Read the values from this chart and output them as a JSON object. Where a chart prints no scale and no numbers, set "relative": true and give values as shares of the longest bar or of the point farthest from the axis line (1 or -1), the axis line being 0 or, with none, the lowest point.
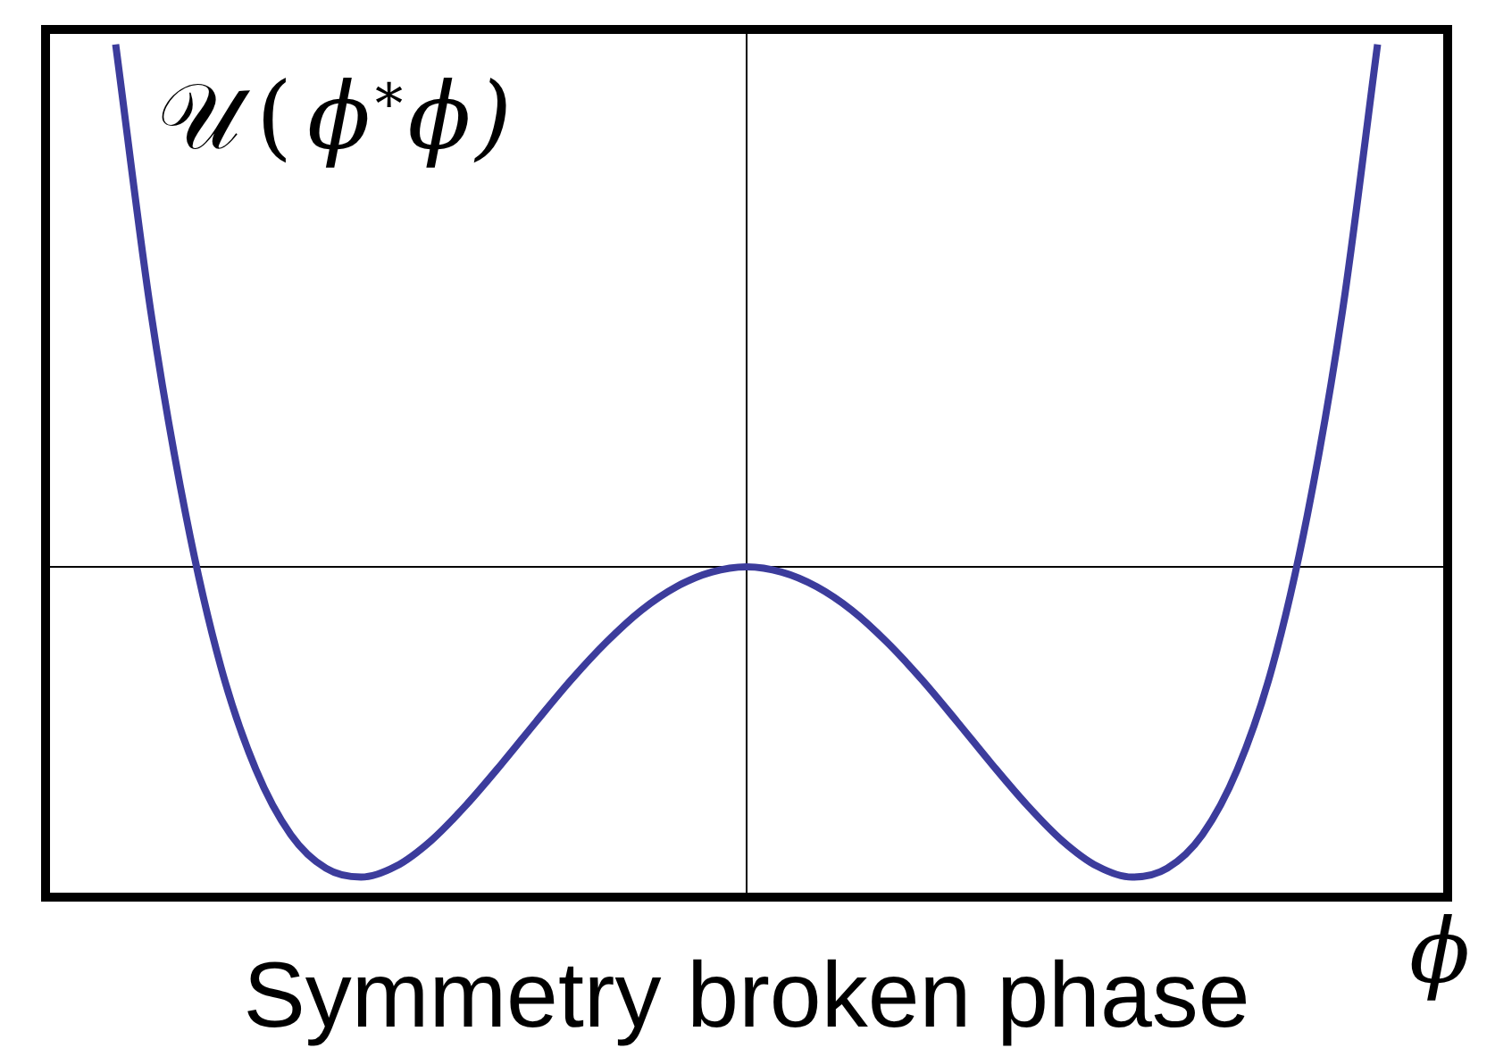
{
  "chart_data": {
    "type": "line",
    "title": "Symmetry broken phase",
    "xlabel": "ϕ",
    "ylabel": "𝒰(ϕ$^{*}$ϕ)",
    "relative": true,
    "categories": [
      null,
      null,
      null,
      null,
      null,
      null,
      null,
      null,
      null,
      null,
      null,
      null,
      null,
      null,
      null,
      null,
      null,
      null,
      null,
      null,
      null,
      null,
      null,
      null,
      null,
      null,
      null,
      null,
      null,
      null,
      null,
      null,
      null,
      null,
      null,
      null,
      null,
      null,
      null,
      null,
      null
    ],
    "values": [
      null,
      null,
      1,
      0.49,
      0.1,
      -0.191,
      -0.388,
      -0.513,
      -0.577,
      -0.594,
      -0.573,
      -0.524,
      -0.456,
      -0.378,
      -0.296,
      -0.216,
      -0.144,
      -0.083,
      -0.038,
      -0.01,
      0,
      -0.01,
      -0.038,
      -0.083,
      -0.144,
      -0.216,
      -0.296,
      -0.378,
      -0.456,
      -0.524,
      -0.573,
      -0.594,
      -0.577,
      -0.513,
      -0.388,
      -0.191,
      0.1,
      0.49,
      1,
      null,
      null
    ],
    "color": "#3c3c9c",
    "marker": "none"
  }
}
